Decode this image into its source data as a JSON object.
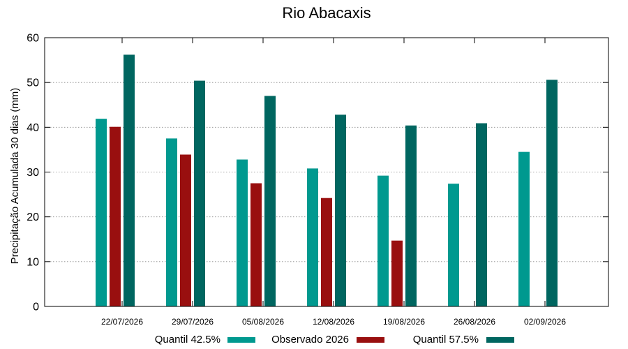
{
  "chart_data": {
    "type": "bar",
    "title": "Rio Abacaxis",
    "xlabel": "",
    "ylabel": "Precipitação Acumulada 30 dias (mm)",
    "ylim": [
      0,
      60
    ],
    "yticks": [
      0,
      10,
      20,
      30,
      40,
      50,
      60
    ],
    "grid": true,
    "legend_position": "bottom",
    "categories": [
      "22/07/2026",
      "29/07/2026",
      "05/08/2026",
      "12/08/2026",
      "19/08/2026",
      "26/08/2026",
      "02/09/2026"
    ],
    "series": [
      {
        "name": "Quantil 42.5%",
        "color": "#00998f",
        "values": [
          41.9,
          37.5,
          32.8,
          30.8,
          29.2,
          27.4,
          34.5
        ]
      },
      {
        "name": "Observado 2026",
        "color": "#990f0f",
        "values": [
          40.1,
          33.9,
          27.5,
          24.2,
          14.7,
          null,
          null
        ]
      },
      {
        "name": "Quantil 57.5%",
        "color": "#006660",
        "values": [
          56.2,
          50.4,
          47.0,
          42.8,
          40.4,
          40.9,
          50.6
        ]
      }
    ]
  }
}
